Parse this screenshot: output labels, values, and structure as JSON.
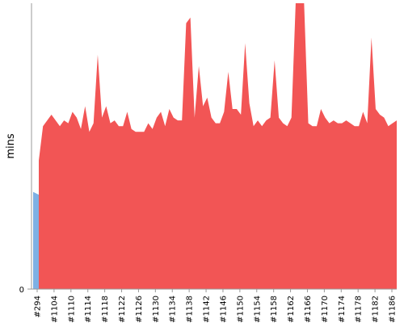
{
  "chart_data": {
    "type": "area",
    "ylabel": "mins",
    "ylim": [
      0,
      100
    ],
    "yticks": [
      0
    ],
    "grid": false,
    "colors": {
      "passed": "#f25555",
      "early": "#7eb0e4",
      "axis": "#999999"
    },
    "x_tick_labels": [
      "#294",
      "#1104",
      "#1110",
      "#1114",
      "#1118",
      "#1122",
      "#1126",
      "#1130",
      "#1134",
      "#1138",
      "#1142",
      "#1146",
      "#1150",
      "#1154",
      "#1158",
      "#1162",
      "#1166",
      "#1170",
      "#1174",
      "#1178",
      "#1182",
      "#1186"
    ],
    "early_series": {
      "values": [
        34,
        33
      ]
    },
    "main_series": {
      "values": [
        45,
        57,
        59,
        61,
        59,
        57,
        59,
        58,
        62,
        60,
        56,
        64,
        55,
        58,
        82,
        60,
        64,
        58,
        59,
        57,
        57,
        62,
        56,
        55,
        55,
        55,
        58,
        56,
        60,
        62,
        57,
        63,
        60,
        59,
        59,
        93,
        95,
        60,
        78,
        64,
        67,
        60,
        58,
        58,
        62,
        76,
        63,
        63,
        61,
        86,
        65,
        57,
        59,
        57,
        59,
        60,
        80,
        60,
        58,
        57,
        60,
        100,
        100,
        100,
        58,
        57,
        57,
        63,
        60,
        58,
        59,
        58,
        58,
        59,
        58,
        57,
        57,
        62,
        58,
        88,
        63,
        61,
        60,
        57,
        58,
        59
      ]
    }
  }
}
